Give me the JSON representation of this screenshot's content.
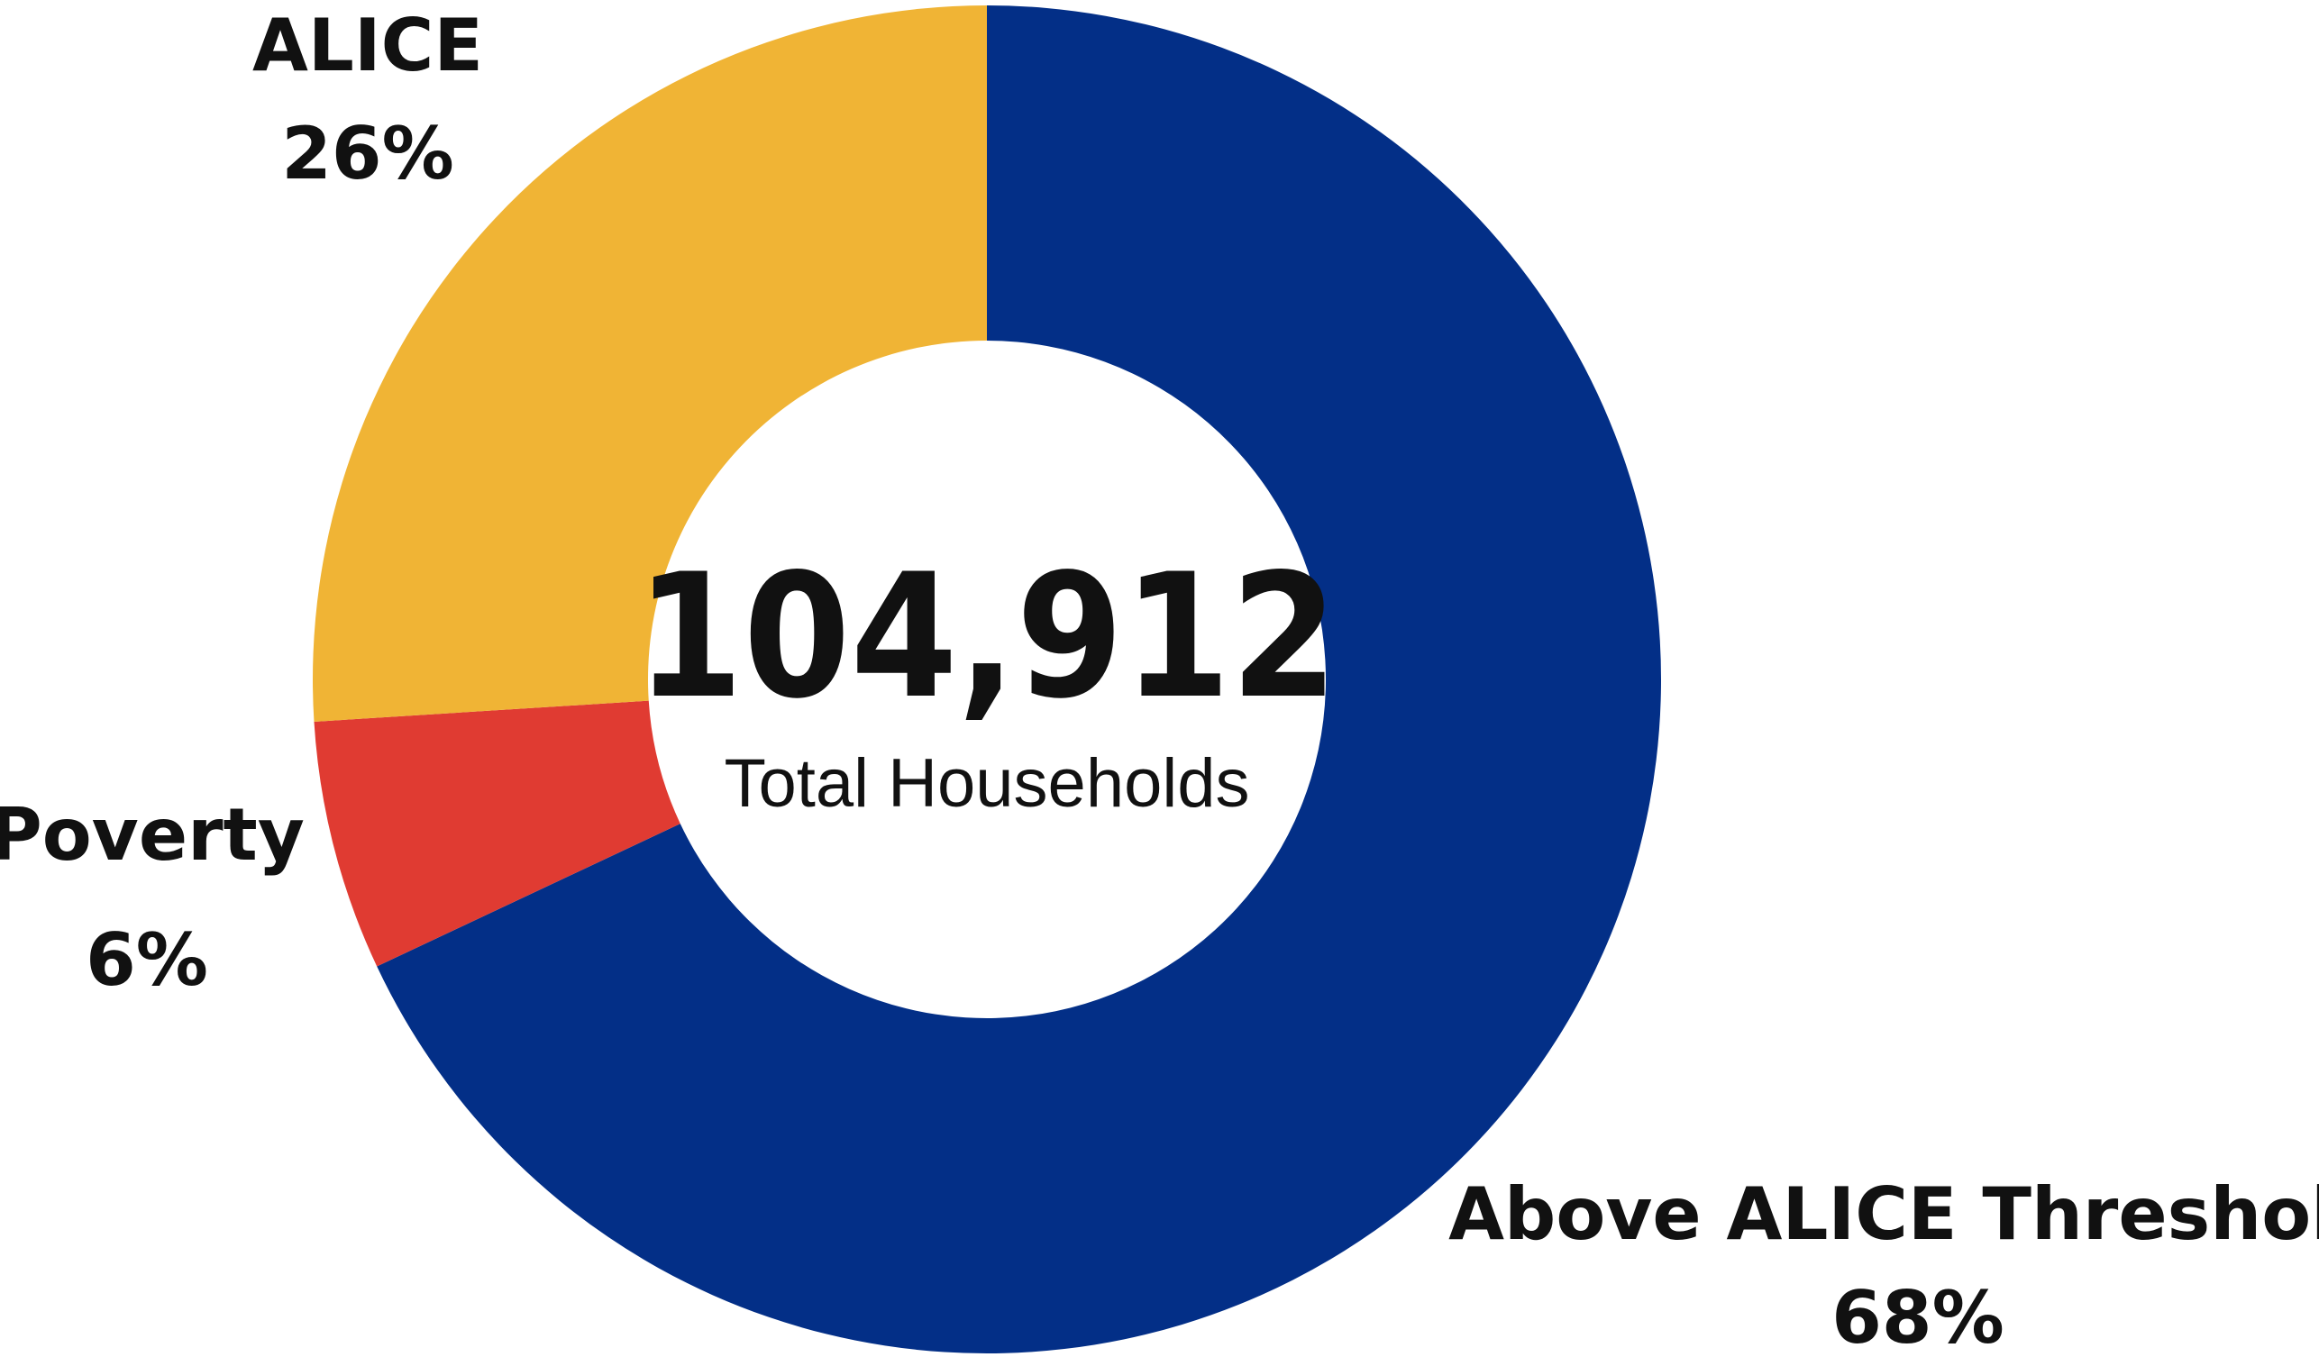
{
  "chart_data": {
    "type": "pie",
    "variant": "donut",
    "center": {
      "value": "104,912",
      "caption": "Total Households"
    },
    "slices": [
      {
        "label": "Above ALICE Threshold",
        "value": 68,
        "display": "68%",
        "color": "#032F87"
      },
      {
        "label": "Poverty",
        "value": 6,
        "display": "6%",
        "color": "#E03B32"
      },
      {
        "label": "ALICE",
        "value": 26,
        "display": "26%",
        "color": "#F0B435"
      }
    ],
    "legend": "none"
  }
}
